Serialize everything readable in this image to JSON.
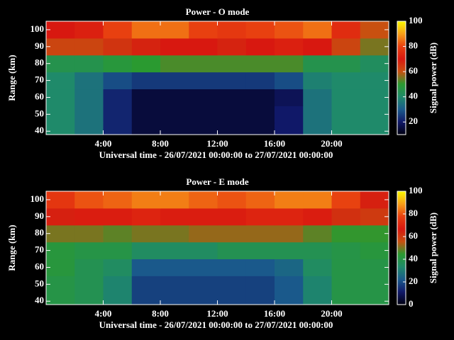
{
  "chart_data": [
    {
      "type": "heatmap",
      "title": "Power - O mode",
      "xlabel": "Universal time - 26/07/2021 00:00:00 to 27/07/2021 00:00:00",
      "ylabel": "Range (km)",
      "colorbar_label": "Signal power (dB)",
      "x_bins": [
        0,
        2,
        4,
        6,
        8,
        10,
        12,
        14,
        16,
        18,
        20,
        22,
        24
      ],
      "y_bins": [
        38,
        45,
        55,
        65,
        75,
        85,
        95,
        105
      ],
      "z": [
        [
          40,
          35,
          22,
          15,
          15,
          15,
          15,
          15,
          20,
          35,
          40,
          40
        ],
        [
          40,
          35,
          22,
          15,
          15,
          15,
          15,
          15,
          20,
          35,
          40,
          40
        ],
        [
          40,
          35,
          22,
          15,
          15,
          15,
          15,
          15,
          18,
          35,
          40,
          40
        ],
        [
          40,
          35,
          28,
          25,
          25,
          25,
          25,
          25,
          28,
          38,
          40,
          40
        ],
        [
          45,
          45,
          48,
          50,
          52,
          52,
          52,
          52,
          52,
          45,
          45,
          42
        ],
        [
          62,
          62,
          65,
          68,
          70,
          70,
          68,
          70,
          72,
          70,
          62,
          55
        ],
        [
          70,
          72,
          80,
          85,
          85,
          80,
          78,
          80,
          82,
          85,
          75,
          60
        ]
      ],
      "xlim": [
        0,
        24
      ],
      "xticks": [
        {
          "value": 4,
          "label": "4:00"
        },
        {
          "value": 8,
          "label": "8:00"
        },
        {
          "value": 12,
          "label": "12:00"
        },
        {
          "value": 16,
          "label": "16:00"
        },
        {
          "value": 20,
          "label": "20:00"
        }
      ],
      "ylim": [
        38,
        105
      ],
      "yticks": [
        40,
        50,
        60,
        70,
        80,
        90,
        100
      ],
      "clim": [
        10,
        100
      ],
      "cticks": [
        20,
        40,
        60,
        80,
        100
      ],
      "colormap": [
        "#000010",
        "#101868",
        "#1a5a8c",
        "#1f8a6a",
        "#2a9a30",
        "#c85010",
        "#d81810",
        "#e84010",
        "#f8a018",
        "#f8f800"
      ]
    },
    {
      "type": "heatmap",
      "title": "Power - E mode",
      "xlabel": "Universal time - 26/07/2021 00:00:00 to 27/07/2021 00:00:00",
      "ylabel": "Range (km)",
      "colorbar_label": "Signal power (dB)",
      "x_bins": [
        0,
        2,
        4,
        6,
        8,
        10,
        12,
        14,
        16,
        18,
        20,
        22,
        24
      ],
      "y_bins": [
        38,
        45,
        55,
        65,
        75,
        85,
        95,
        105
      ],
      "z": [
        [
          40,
          38,
          32,
          18,
          18,
          18,
          18,
          18,
          22,
          32,
          40,
          40
        ],
        [
          40,
          38,
          32,
          18,
          18,
          18,
          18,
          18,
          22,
          32,
          40,
          40
        ],
        [
          42,
          38,
          35,
          22,
          22,
          22,
          22,
          22,
          25,
          35,
          40,
          40
        ],
        [
          42,
          40,
          40,
          35,
          35,
          35,
          38,
          38,
          38,
          38,
          40,
          42
        ],
        [
          50,
          50,
          48,
          50,
          50,
          52,
          52,
          52,
          52,
          48,
          45,
          45
        ],
        [
          65,
          68,
          68,
          70,
          68,
          68,
          68,
          70,
          70,
          68,
          62,
          60
        ],
        [
          75,
          80,
          82,
          85,
          85,
          82,
          80,
          82,
          85,
          85,
          78,
          65
        ]
      ],
      "xlim": [
        0,
        24
      ],
      "xticks": [
        {
          "value": 4,
          "label": "4:00"
        },
        {
          "value": 8,
          "label": "8:00"
        },
        {
          "value": 12,
          "label": "12:00"
        },
        {
          "value": 16,
          "label": "16:00"
        },
        {
          "value": 20,
          "label": "20:00"
        }
      ],
      "ylim": [
        38,
        105
      ],
      "yticks": [
        40,
        50,
        60,
        70,
        80,
        90,
        100
      ],
      "clim": [
        0,
        100
      ],
      "cticks": [
        0,
        20,
        40,
        60,
        80,
        100
      ],
      "colormap": [
        "#000010",
        "#101868",
        "#1a5a8c",
        "#1f8a6a",
        "#2a9a30",
        "#c85010",
        "#d81810",
        "#e84010",
        "#f8a018",
        "#f8f800"
      ]
    }
  ]
}
